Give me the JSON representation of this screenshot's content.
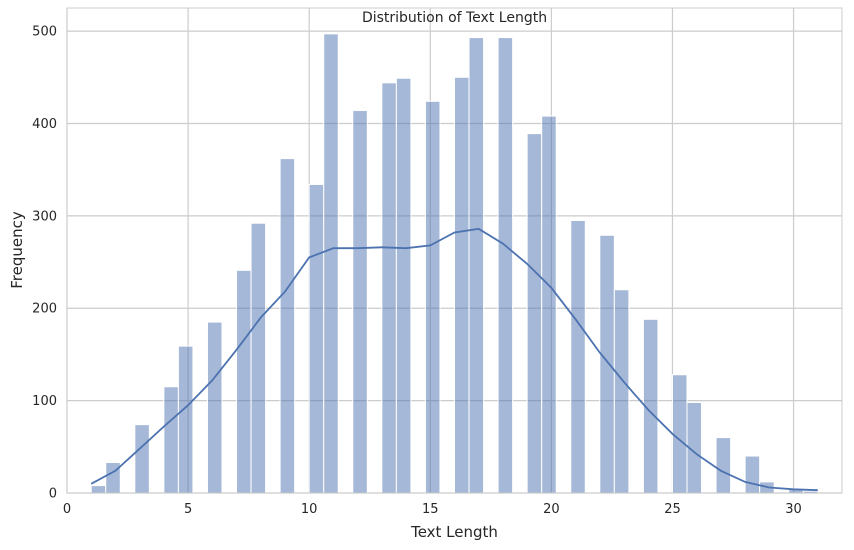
{
  "chart_data": {
    "type": "bar",
    "title": "Distribution of Text Length",
    "xlabel": "Text Length",
    "ylabel": "Frequency",
    "xlim": [
      0,
      32
    ],
    "ylim": [
      0,
      525
    ],
    "xticks": [
      0,
      5,
      10,
      15,
      20,
      25,
      30
    ],
    "yticks": [
      0,
      100,
      200,
      300,
      400,
      500
    ],
    "grid": true,
    "bar_color": "#4c72b0",
    "bar_alpha": 0.5,
    "kde_color": "#4c72b0",
    "bins": [
      {
        "x0": 1.0,
        "x1": 1.6,
        "count": 8
      },
      {
        "x0": 1.6,
        "x1": 2.2,
        "count": 33
      },
      {
        "x0": 2.8,
        "x1": 3.4,
        "count": 74
      },
      {
        "x0": 4.0,
        "x1": 4.6,
        "count": 115
      },
      {
        "x0": 4.6,
        "x1": 5.2,
        "count": 159
      },
      {
        "x0": 5.8,
        "x1": 6.4,
        "count": 185
      },
      {
        "x0": 7.0,
        "x1": 7.6,
        "count": 241
      },
      {
        "x0": 7.6,
        "x1": 8.2,
        "count": 292
      },
      {
        "x0": 8.8,
        "x1": 9.4,
        "count": 362
      },
      {
        "x0": 10.0,
        "x1": 10.6,
        "count": 334
      },
      {
        "x0": 10.6,
        "x1": 11.2,
        "count": 497
      },
      {
        "x0": 11.8,
        "x1": 12.4,
        "count": 414
      },
      {
        "x0": 13.0,
        "x1": 13.6,
        "count": 444
      },
      {
        "x0": 13.6,
        "x1": 14.2,
        "count": 449
      },
      {
        "x0": 14.8,
        "x1": 15.4,
        "count": 424
      },
      {
        "x0": 16.0,
        "x1": 16.6,
        "count": 450
      },
      {
        "x0": 16.6,
        "x1": 17.2,
        "count": 493
      },
      {
        "x0": 17.8,
        "x1": 18.4,
        "count": 493
      },
      {
        "x0": 19.0,
        "x1": 19.6,
        "count": 389
      },
      {
        "x0": 19.6,
        "x1": 20.2,
        "count": 408
      },
      {
        "x0": 20.8,
        "x1": 21.4,
        "count": 295
      },
      {
        "x0": 22.0,
        "x1": 22.6,
        "count": 279
      },
      {
        "x0": 22.6,
        "x1": 23.2,
        "count": 220
      },
      {
        "x0": 23.8,
        "x1": 24.4,
        "count": 188
      },
      {
        "x0": 25.0,
        "x1": 25.6,
        "count": 128
      },
      {
        "x0": 25.6,
        "x1": 26.2,
        "count": 98
      },
      {
        "x0": 26.8,
        "x1": 27.4,
        "count": 60
      },
      {
        "x0": 28.0,
        "x1": 28.6,
        "count": 40
      },
      {
        "x0": 28.6,
        "x1": 29.2,
        "count": 12
      },
      {
        "x0": 29.8,
        "x1": 30.4,
        "count": 4
      },
      {
        "x0": 30.4,
        "x1": 31.0,
        "count": 2
      }
    ],
    "kde": {
      "x": [
        1,
        2,
        3,
        4,
        5,
        6,
        7,
        8,
        9,
        10,
        11,
        12,
        13,
        14,
        15,
        16,
        17,
        18,
        19,
        20,
        21,
        22,
        23,
        24,
        25,
        26,
        27,
        28,
        29,
        30,
        31
      ],
      "y": [
        10,
        24,
        48,
        72,
        95,
        122,
        155,
        190,
        218,
        255,
        265,
        265,
        266,
        265,
        268,
        282,
        286,
        270,
        248,
        222,
        188,
        152,
        120,
        90,
        64,
        42,
        24,
        12,
        6,
        4,
        3
      ]
    }
  }
}
